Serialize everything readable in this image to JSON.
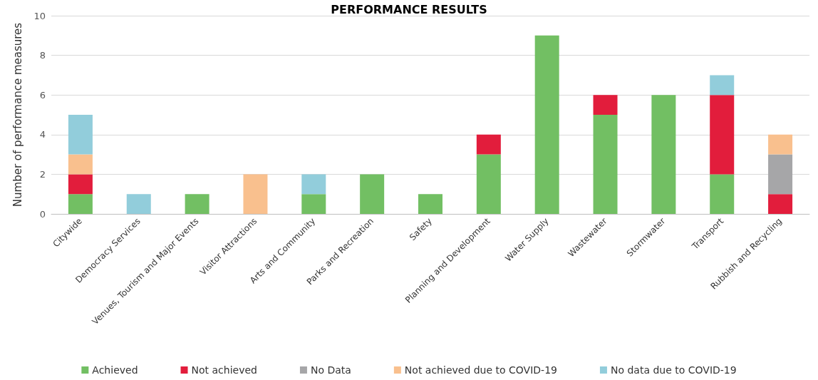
{
  "chart_data": {
    "type": "bar",
    "title": "PERFORMANCE RESULTS",
    "ylabel": "Number of performance measures",
    "categories": [
      "Citywide",
      "Democracy Services",
      "Venues, Tourism and Major Events",
      "Visitor Attractions",
      "Arts and Community",
      "Parks and Recreation",
      "Safety",
      "Planning and Development",
      "Water Supply",
      "Wastewater",
      "Stormwater",
      "Transport",
      "Rubbish and Recycling"
    ],
    "stacked": true,
    "series": [
      {
        "name": "Achieved",
        "color": "#72bf63",
        "values": [
          1,
          null,
          1,
          null,
          1,
          2,
          1,
          3,
          9,
          5,
          6,
          2,
          null
        ]
      },
      {
        "name": "Not achieved",
        "color": "#e21d3c",
        "values": [
          1,
          null,
          null,
          null,
          null,
          null,
          null,
          1,
          null,
          1,
          null,
          4,
          1
        ]
      },
      {
        "name": "No Data",
        "color": "#a6a6a8",
        "values": [
          null,
          null,
          null,
          null,
          null,
          null,
          null,
          null,
          null,
          null,
          null,
          null,
          2
        ]
      },
      {
        "name": "Not achieved due to COVID-19",
        "color": "#f9c08e",
        "values": [
          1,
          null,
          null,
          2,
          null,
          null,
          null,
          null,
          null,
          null,
          null,
          null,
          1
        ]
      },
      {
        "name": "No data due to COVID-19",
        "color": "#92cddb",
        "values": [
          2,
          1,
          null,
          null,
          1,
          null,
          null,
          null,
          null,
          null,
          null,
          1,
          null
        ]
      }
    ],
    "ylim": [
      0,
      10
    ],
    "yticks": [
      0,
      2,
      4,
      6,
      8,
      10
    ],
    "grid": "y",
    "legend": "bottom"
  }
}
